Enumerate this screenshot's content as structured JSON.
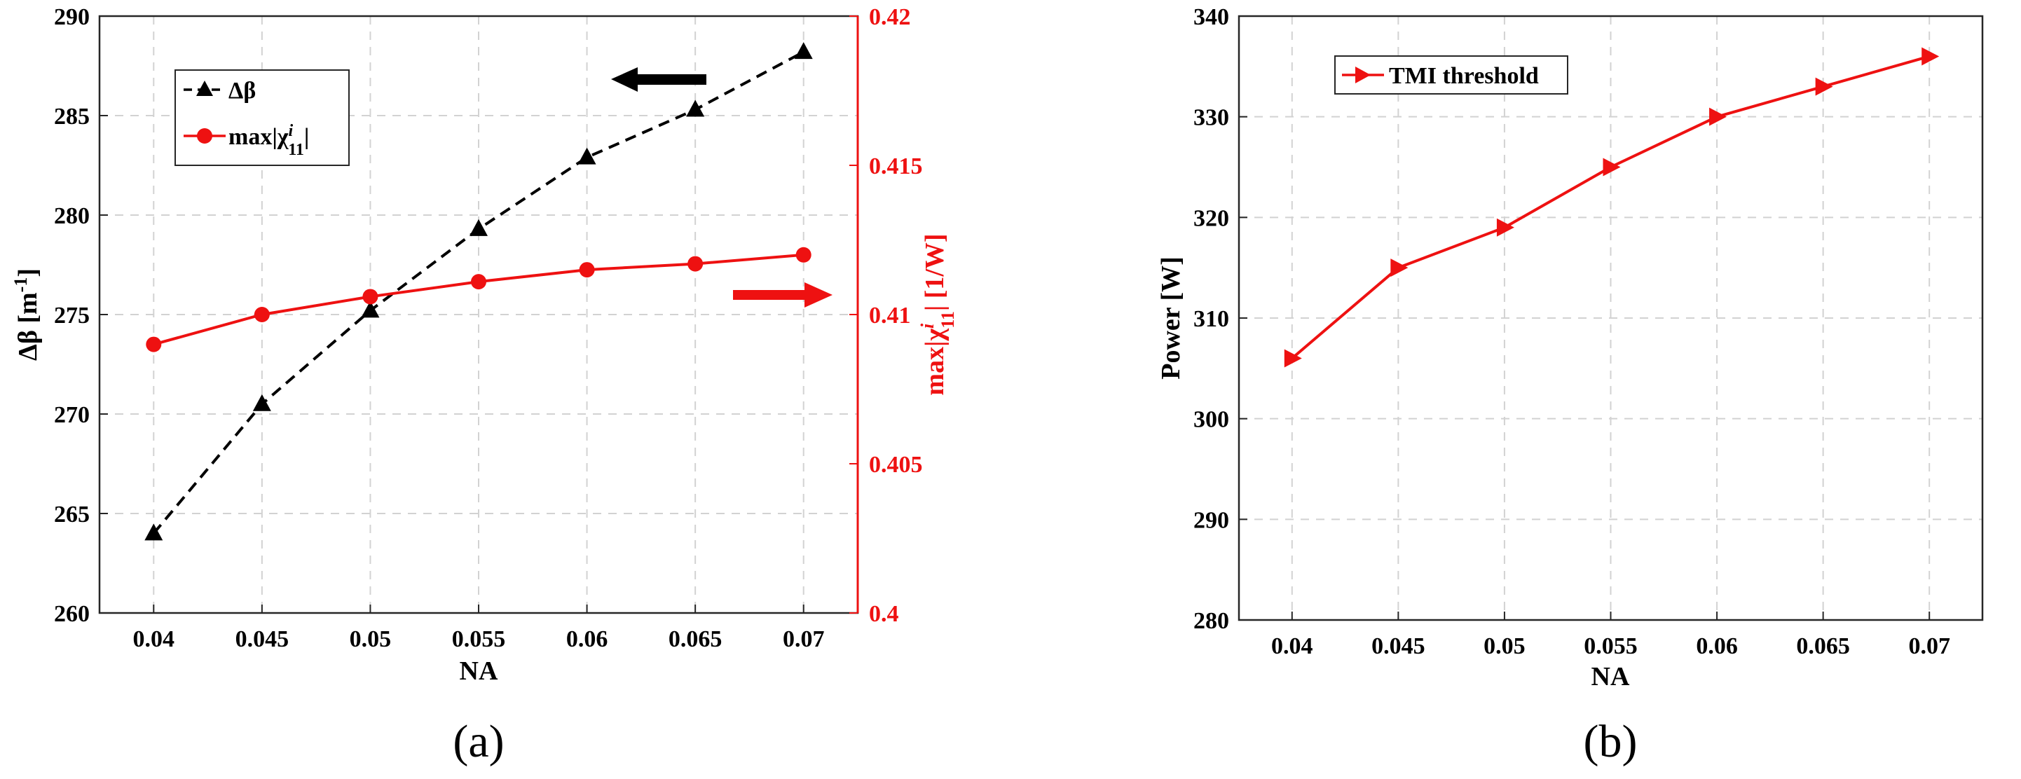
{
  "chart_data": [
    {
      "type": "line",
      "panel_label": "(a)",
      "xlabel": "NA",
      "ylabel": "Δβ [m",
      "ylabel_sup": "-1",
      "ylabel_end": "]",
      "y2label": "max|χ",
      "y2label_sup": "i",
      "y2label_sub": "11",
      "y2label_end": "| [1/W]",
      "x": [
        0.04,
        0.045,
        0.05,
        0.055,
        0.06,
        0.065,
        0.07
      ],
      "x_tick_labels": [
        "0.04",
        "0.045",
        "0.05",
        "0.055",
        "0.06",
        "0.065",
        "0.07"
      ],
      "xlim": [
        0.0375,
        0.0725
      ],
      "ylim": [
        260,
        290
      ],
      "y_tick_labels": [
        "260",
        "265",
        "270",
        "275",
        "280",
        "285",
        "290"
      ],
      "y_ticks": [
        260,
        265,
        270,
        275,
        280,
        285,
        290
      ],
      "y2lim": [
        0.4,
        0.42
      ],
      "y2_tick_labels": [
        "0.4",
        "0.405",
        "0.41",
        "0.415",
        "0.42"
      ],
      "y2_ticks": [
        0.4,
        0.405,
        0.41,
        0.415,
        0.42
      ],
      "grid": true,
      "legend_position": "top-left",
      "series": [
        {
          "name": "Δβ",
          "axis": "left",
          "marker": "triangle",
          "line_style": "dashed",
          "color": "#000000",
          "values": [
            264,
            270.5,
            275.2,
            279.3,
            282.9,
            285.3,
            288.2
          ]
        },
        {
          "name": "max|χ",
          "name_sup": "i",
          "name_sub": "11",
          "name_end": "|",
          "axis": "right",
          "marker": "circle",
          "line_style": "solid",
          "color": "#ee1111",
          "values": [
            0.409,
            0.41,
            0.4106,
            0.4111,
            0.4115,
            0.4117,
            0.412
          ]
        }
      ],
      "annotations": [
        {
          "type": "arrow",
          "direction": "left",
          "color": "#000000"
        },
        {
          "type": "arrow",
          "direction": "right",
          "color": "#ee1111"
        }
      ]
    },
    {
      "type": "line",
      "panel_label": "(b)",
      "xlabel": "NA",
      "ylabel": "Power [W]",
      "x": [
        0.04,
        0.045,
        0.05,
        0.055,
        0.06,
        0.065,
        0.07
      ],
      "x_tick_labels": [
        "0.04",
        "0.045",
        "0.05",
        "0.055",
        "0.06",
        "0.065",
        "0.07"
      ],
      "xlim": [
        0.0375,
        0.0725
      ],
      "ylim": [
        280,
        340
      ],
      "y_ticks": [
        280,
        290,
        300,
        310,
        320,
        330,
        340
      ],
      "y_tick_labels": [
        "280",
        "290",
        "300",
        "310",
        "320",
        "330",
        "340"
      ],
      "grid": true,
      "legend_position": "top-left",
      "series": [
        {
          "name": "TMI threshold",
          "marker": "triangle-right",
          "line_style": "solid",
          "color": "#ee1111",
          "values": [
            306,
            315,
            319,
            325,
            330,
            333,
            336
          ]
        }
      ]
    }
  ]
}
